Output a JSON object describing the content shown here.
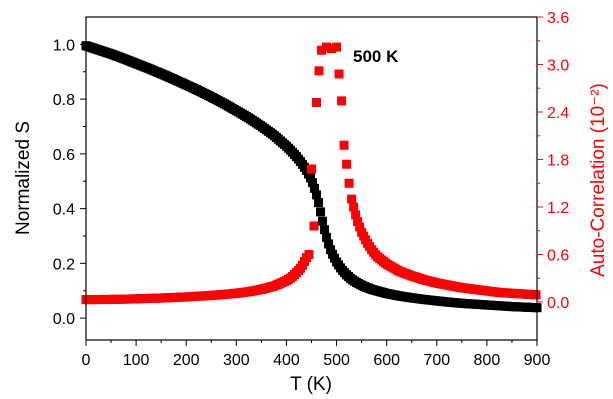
{
  "chart_data": {
    "type": "scatter",
    "title": "",
    "xlabel": "T (K)",
    "ylabel": "Normalized S",
    "y2label": "Auto-Correlation (10⁻²)",
    "xlim": [
      0,
      900
    ],
    "ylim": [
      -0.08,
      1.1
    ],
    "y2lim": [
      -0.48,
      3.6
    ],
    "x_ticks": [
      "0",
      "100",
      "200",
      "300",
      "400",
      "500",
      "600",
      "700",
      "800",
      "900"
    ],
    "y_ticks": [
      "0.0",
      "0.2",
      "0.4",
      "0.6",
      "0.8",
      "1.0"
    ],
    "y2_ticks": [
      "0.0",
      "0.6",
      "1.2",
      "1.8",
      "2.4",
      "3.0",
      "3.6"
    ],
    "annotation": "500 K",
    "colors": {
      "left_axis": "#000000",
      "right_axis": "#ff0000"
    },
    "series": [
      {
        "axis": "left",
        "color": "#000000",
        "x": [
          0,
          25,
          50,
          75,
          100,
          125,
          150,
          175,
          200,
          225,
          250,
          275,
          300,
          325,
          350,
          375,
          400,
          410,
          420,
          430,
          440,
          450,
          455,
          460,
          465,
          470,
          475,
          480,
          485,
          490,
          500,
          510,
          520,
          530,
          540,
          550,
          560,
          570,
          580,
          600,
          625,
          650,
          675,
          700,
          725,
          750,
          775,
          800,
          825,
          850,
          875,
          900
        ],
        "y": [
          0.995,
          0.98,
          0.965,
          0.948,
          0.93,
          0.912,
          0.893,
          0.873,
          0.852,
          0.831,
          0.808,
          0.784,
          0.758,
          0.731,
          0.701,
          0.668,
          0.628,
          0.61,
          0.59,
          0.567,
          0.54,
          0.505,
          0.48,
          0.45,
          0.415,
          0.37,
          0.33,
          0.295,
          0.265,
          0.24,
          0.205,
          0.178,
          0.158,
          0.142,
          0.13,
          0.12,
          0.112,
          0.105,
          0.1,
          0.09,
          0.081,
          0.074,
          0.068,
          0.063,
          0.058,
          0.054,
          0.051,
          0.048,
          0.045,
          0.042,
          0.04,
          0.038
        ]
      },
      {
        "axis": "right",
        "color": "#ff0000",
        "x": [
          0,
          25,
          50,
          75,
          100,
          125,
          150,
          175,
          200,
          225,
          250,
          275,
          300,
          325,
          350,
          375,
          400,
          410,
          420,
          430,
          440,
          445,
          450,
          455,
          460,
          465,
          470,
          480,
          490,
          500,
          505,
          510,
          515,
          520,
          525,
          530,
          540,
          550,
          560,
          570,
          580,
          600,
          625,
          650,
          675,
          700,
          725,
          750,
          775,
          800,
          825,
          850,
          875,
          900
        ],
        "y": [
          0.03,
          0.031,
          0.033,
          0.036,
          0.04,
          0.045,
          0.05,
          0.057,
          0.064,
          0.073,
          0.083,
          0.095,
          0.11,
          0.13,
          0.16,
          0.2,
          0.27,
          0.31,
          0.37,
          0.44,
          0.56,
          0.6,
          1.68,
          0.96,
          2.52,
          2.92,
          3.18,
          3.22,
          3.2,
          3.22,
          2.88,
          2.54,
          1.98,
          1.74,
          1.5,
          1.3,
          1.05,
          0.88,
          0.76,
          0.66,
          0.58,
          0.48,
          0.39,
          0.33,
          0.28,
          0.24,
          0.21,
          0.18,
          0.16,
          0.14,
          0.12,
          0.11,
          0.1,
          0.09
        ]
      }
    ]
  }
}
